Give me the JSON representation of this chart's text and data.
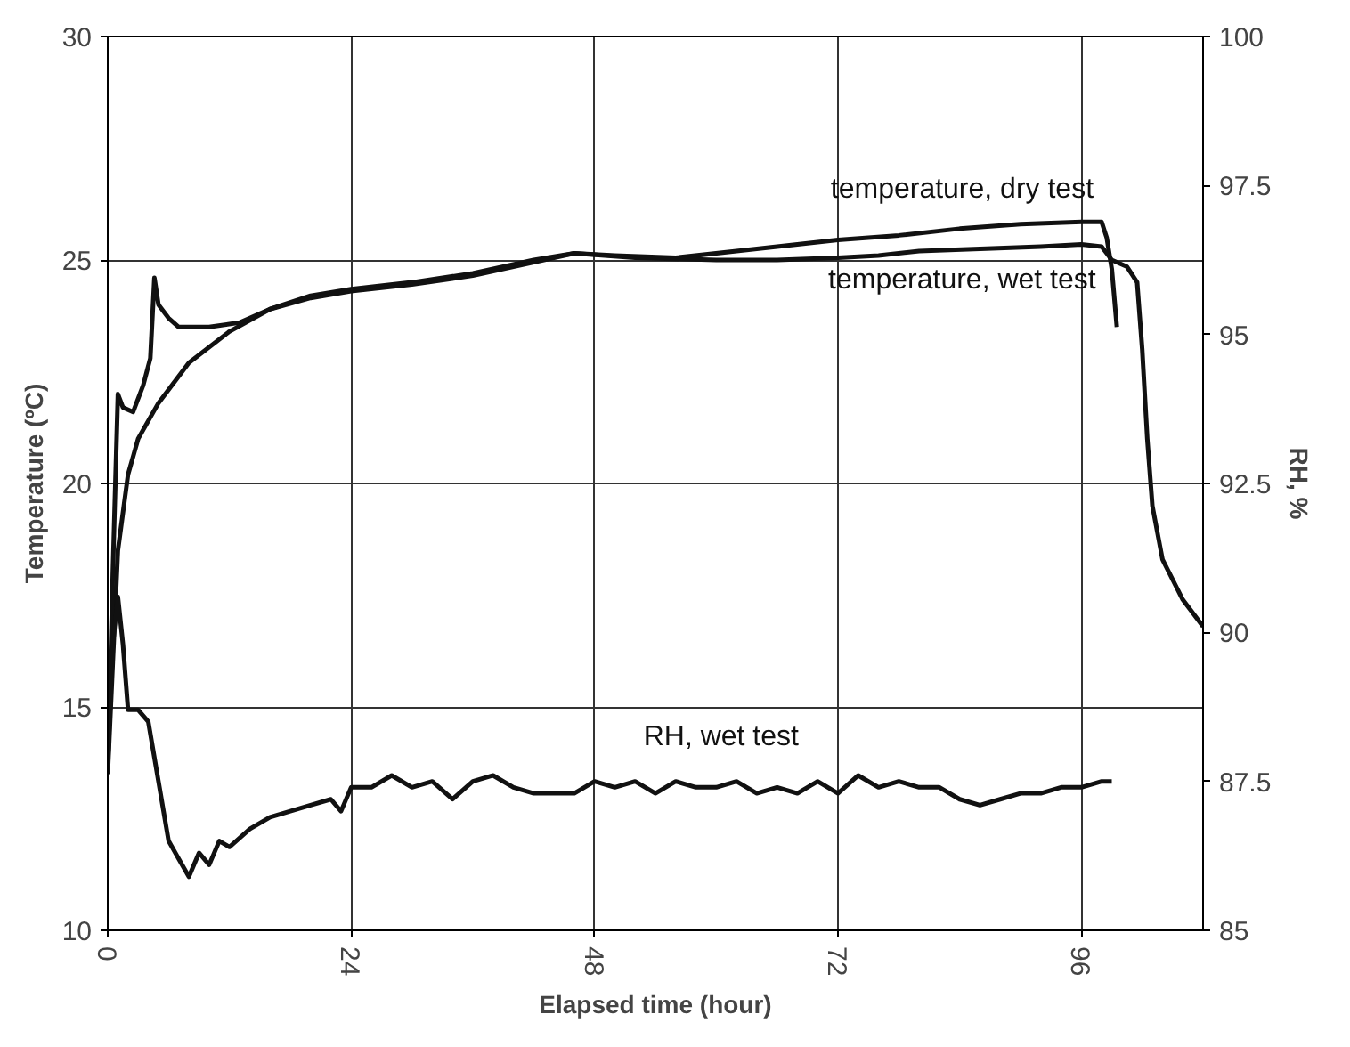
{
  "chart_data": {
    "type": "line",
    "xlabel": "Elapsed time (hour)",
    "ylabel": "Temperature (ºC)",
    "y2label": "RH, %",
    "xlim": [
      0,
      108
    ],
    "xticks": [
      0,
      24,
      48,
      72,
      96
    ],
    "ylim": [
      10,
      30
    ],
    "yticks": [
      10,
      15,
      20,
      25,
      30
    ],
    "y2lim": [
      85,
      100
    ],
    "y2ticks": [
      85,
      87.5,
      90,
      92.5,
      95,
      97.5,
      100
    ],
    "grid": true,
    "line_style": "solid",
    "marker": "none",
    "series": [
      {
        "name": "temperature, dry test",
        "color": "#111111",
        "x": [
          0,
          0.5,
          1,
          2,
          3,
          5,
          8,
          12,
          16,
          20,
          24,
          30,
          36,
          42,
          46,
          50,
          56,
          62,
          68,
          72,
          78,
          84,
          90,
          96,
          98,
          98.5,
          99,
          99.5
        ],
        "values": [
          13.5,
          16,
          18.5,
          20.2,
          21,
          21.8,
          22.7,
          23.4,
          23.9,
          24.2,
          24.35,
          24.5,
          24.7,
          25.0,
          25.15,
          25.1,
          25.05,
          25.2,
          25.35,
          25.45,
          25.55,
          25.7,
          25.8,
          25.85,
          25.85,
          25.5,
          24.8,
          23.5
        ]
      },
      {
        "name": "temperature, wet test",
        "color": "#111111",
        "x": [
          0,
          0.5,
          1,
          1.5,
          2.5,
          3.5,
          4.2,
          4.6,
          5,
          6,
          7,
          10,
          13,
          16,
          20,
          24,
          30,
          36,
          42,
          46,
          52,
          60,
          66,
          72,
          76,
          80,
          86,
          92,
          96,
          98,
          99,
          100.5,
          101.5,
          102,
          102.5,
          103,
          104,
          106,
          108
        ],
        "values": [
          13.5,
          18,
          22,
          21.7,
          21.6,
          22.2,
          22.8,
          24.6,
          24.0,
          23.7,
          23.5,
          23.5,
          23.6,
          23.9,
          24.15,
          24.3,
          24.45,
          24.65,
          24.95,
          25.15,
          25.05,
          25.0,
          25.0,
          25.05,
          25.1,
          25.2,
          25.25,
          25.3,
          25.35,
          25.3,
          25.0,
          24.85,
          24.5,
          23,
          21,
          19.5,
          18.3,
          17.4,
          16.8
        ]
      },
      {
        "name": "RH, wet test",
        "color": "#111111",
        "axis": "y2",
        "x": [
          0,
          0.5,
          1,
          1.5,
          2,
          3,
          4,
          5,
          6,
          7,
          8,
          9,
          10,
          11,
          12,
          14,
          16,
          18,
          20,
          22,
          23,
          24,
          26,
          28,
          30,
          32,
          34,
          36,
          38,
          40,
          42,
          44,
          46,
          48,
          50,
          52,
          54,
          56,
          58,
          60,
          62,
          64,
          66,
          68,
          70,
          72,
          74,
          76,
          78,
          80,
          82,
          84,
          86,
          88,
          90,
          92,
          94,
          96,
          98,
          99
        ],
        "values": [
          87.8,
          89.8,
          90.6,
          89.8,
          88.7,
          88.7,
          88.5,
          87.5,
          86.5,
          86.2,
          85.9,
          86.3,
          86.1,
          86.5,
          86.4,
          86.7,
          86.9,
          87.0,
          87.1,
          87.2,
          87.0,
          87.4,
          87.4,
          87.6,
          87.4,
          87.5,
          87.2,
          87.5,
          87.6,
          87.4,
          87.3,
          87.3,
          87.3,
          87.5,
          87.4,
          87.5,
          87.3,
          87.5,
          87.4,
          87.4,
          87.5,
          87.3,
          87.4,
          87.3,
          87.5,
          87.3,
          87.6,
          87.4,
          87.5,
          87.4,
          87.4,
          87.2,
          87.1,
          87.2,
          87.3,
          87.3,
          87.4,
          87.4,
          87.5,
          87.5
        ]
      }
    ]
  }
}
